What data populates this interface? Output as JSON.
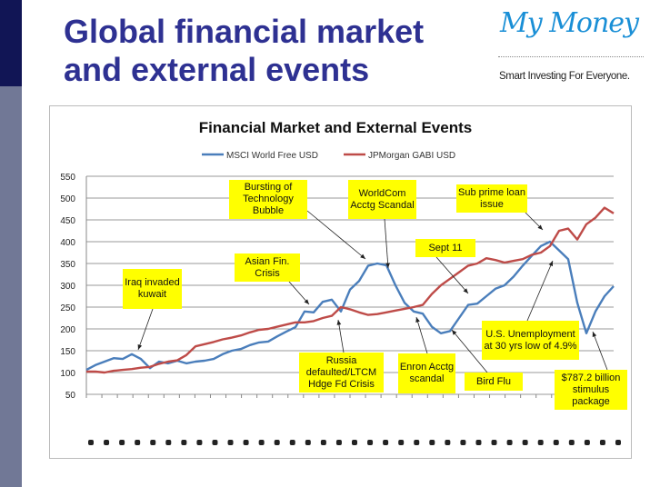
{
  "slide": {
    "title_line1": "Global financial market",
    "title_line2": "and external events"
  },
  "logo": {
    "name": "My Money",
    "tagline": "Smart Investing For Everyone."
  },
  "colors": {
    "msci": "#4a7ebb",
    "jpm": "#be4b48",
    "title": "#2e3192"
  },
  "chart_data": {
    "type": "line",
    "title": "Financial Market and External Events",
    "ylim": [
      50,
      550
    ],
    "yticks": [
      50,
      100,
      150,
      200,
      250,
      300,
      350,
      400,
      450,
      500,
      550
    ],
    "grid": true,
    "legend": "top",
    "series": [
      {
        "name": "MSCI World Free USD",
        "values": [
          106,
          117,
          125,
          133,
          131,
          142,
          131,
          110,
          125,
          121,
          127,
          121,
          125,
          127,
          131,
          142,
          150,
          154,
          163,
          169,
          171,
          183,
          194,
          204,
          240,
          238,
          262,
          267,
          240,
          290,
          310,
          345,
          350,
          346,
          300,
          260,
          240,
          235,
          205,
          190,
          195,
          225,
          255,
          258,
          275,
          292,
          300,
          320,
          345,
          368,
          390,
          400,
          380,
          360,
          260,
          190,
          240,
          275,
          298
        ]
      },
      {
        "name": "JPMorgan GABI USD",
        "values": [
          102,
          102,
          100,
          104,
          106,
          108,
          111,
          113,
          120,
          125,
          128,
          140,
          160,
          165,
          170,
          176,
          180,
          185,
          192,
          198,
          200,
          205,
          210,
          215,
          215,
          218,
          225,
          230,
          250,
          245,
          238,
          232,
          234,
          238,
          242,
          246,
          250,
          255,
          280,
          300,
          315,
          330,
          345,
          350,
          362,
          358,
          352,
          356,
          360,
          370,
          375,
          390,
          425,
          430,
          405,
          440,
          455,
          478,
          465
        ]
      }
    ],
    "annotations": [
      {
        "text": "Iraq invaded kuwait"
      },
      {
        "text": "Bursting of Technology Bubble"
      },
      {
        "text": "WorldCom Acctg Scandal"
      },
      {
        "text": "Asian Fin. Crisis"
      },
      {
        "text": "Sub prime loan issue"
      },
      {
        "text": "Sept 11"
      },
      {
        "text": "Russia defaulted/LTCM Hdge Fd Crisis"
      },
      {
        "text": "Enron Acctg scandal"
      },
      {
        "text": "Bird Flu"
      },
      {
        "text": "U.S. Unemployment at 30 yrs low of 4.9%"
      },
      {
        "text": "$787.2 billion stimulus package"
      }
    ]
  }
}
